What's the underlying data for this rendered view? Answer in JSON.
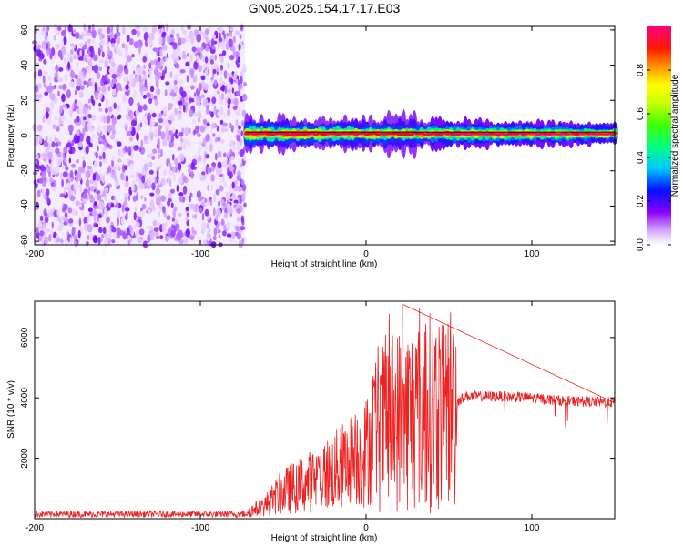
{
  "title": "GN05.2025.154.17.17.E03",
  "chart_data": [
    {
      "type": "heatmap",
      "xlabel": "Height of straight line (km)",
      "ylabel": "Frequency (Hz)",
      "xlim": [
        -200,
        150
      ],
      "ylim": [
        -62,
        62
      ],
      "x_ticks": [
        -200,
        -100,
        0,
        100
      ],
      "y_ticks": [
        -60,
        -40,
        -20,
        0,
        20,
        40,
        60
      ],
      "colorbar": {
        "label": "Normalized spectral amplitude",
        "range": [
          0,
          1
        ],
        "ticks": [
          "0.0",
          "0.2",
          "0.4",
          "0.6",
          "0.8"
        ],
        "colors": [
          "#ffffff",
          "#c080ff",
          "#7000ff",
          "#0020ff",
          "#00c8ff",
          "#00ff60",
          "#a0ff00",
          "#ffff00",
          "#ff8000",
          "#ff0000",
          "#ff0080"
        ]
      },
      "regions": [
        {
          "x_range": [
            -200,
            -73
          ],
          "freq_range": [
            -62,
            62
          ],
          "amplitude_range": [
            0.02,
            0.2
          ],
          "pattern": "broadband noise"
        },
        {
          "x_range": [
            -73,
            150
          ],
          "center_freq": 1,
          "bandwidth_hz": 4,
          "amplitude_range": [
            0.2,
            1.0
          ],
          "pattern": "narrow band near 0 Hz"
        }
      ],
      "line_y": 2
    },
    {
      "type": "line",
      "xlabel": "Height of straight line (km)",
      "ylabel": "SNR (10 * v/v)",
      "xlim": [
        -200,
        150
      ],
      "ylim": [
        0,
        7200
      ],
      "x_ticks": [
        -200,
        -100,
        0,
        100
      ],
      "y_ticks": [
        2000,
        4000,
        6000
      ],
      "color": "#ee2222",
      "envelope": [
        {
          "x": -200,
          "y": 150
        },
        {
          "x": -75,
          "y": 150
        },
        {
          "x": -62,
          "y": 400
        },
        {
          "x": -50,
          "y": 900
        },
        {
          "x": -30,
          "y": 1300
        },
        {
          "x": -15,
          "y": 1700
        },
        {
          "x": 0,
          "y": 2200
        },
        {
          "x": 5,
          "y": 3000
        },
        {
          "x": 20,
          "y": 3300
        },
        {
          "x": 35,
          "y": 3500
        },
        {
          "x": 50,
          "y": 3700
        },
        {
          "x": 60,
          "y": 4050
        },
        {
          "x": 80,
          "y": 4050
        },
        {
          "x": 100,
          "y": 4000
        },
        {
          "x": 120,
          "y": 3900
        },
        {
          "x": 150,
          "y": 3850
        }
      ],
      "peak": {
        "x": 22,
        "y": 7100
      }
    }
  ]
}
